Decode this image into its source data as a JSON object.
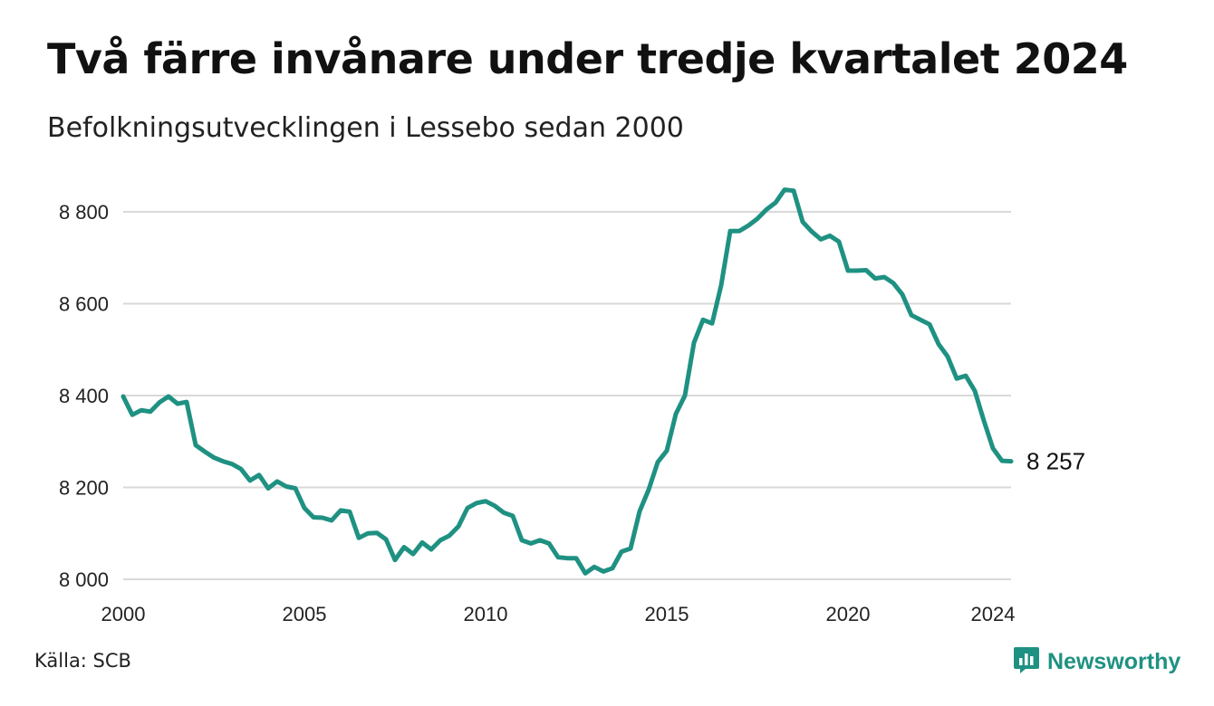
{
  "title": "Två färre invånare under tredje kvartalet 2024",
  "subtitle": "Befolkningsutvecklingen i Lessebo sedan 2000",
  "source": "Källa: SCB",
  "brand": {
    "name": "Newsworthy",
    "icon": "newsworthy-logo-icon",
    "color": "#1f9182"
  },
  "colors": {
    "line": "#1f9182",
    "grid": "#d9d9d9"
  },
  "chart_data": {
    "type": "line",
    "title": "Två färre invånare under tredje kvartalet 2024",
    "subtitle": "Befolkningsutvecklingen i Lessebo sedan 2000",
    "xlabel": "",
    "ylabel": "",
    "xlim": [
      2000,
      2024.5
    ],
    "ylim": [
      8000,
      8850
    ],
    "grid": true,
    "x_ticks": [
      2000,
      2005,
      2010,
      2015,
      2020,
      2024
    ],
    "x_tick_labels": [
      "2000",
      "2005",
      "2010",
      "2015",
      "2020",
      "2024"
    ],
    "y_ticks": [
      8000,
      8200,
      8400,
      8600,
      8800
    ],
    "y_tick_labels": [
      "8 000",
      "8 200",
      "8 400",
      "8 600",
      "8 800"
    ],
    "end_label": "8 257",
    "series": [
      {
        "x": [
          2000.0,
          2000.25,
          2000.5,
          2000.75,
          2001.0,
          2001.25,
          2001.5,
          2001.75,
          2002.0,
          2002.25,
          2002.5,
          2002.75,
          2003.0,
          2003.25,
          2003.5,
          2003.75,
          2004.0,
          2004.25,
          2004.5,
          2004.75,
          2005.0,
          2005.25,
          2005.5,
          2005.75,
          2006.0,
          2006.25,
          2006.5,
          2006.75,
          2007.0,
          2007.25,
          2007.5,
          2007.75,
          2008.0,
          2008.25,
          2008.5,
          2008.75,
          2009.0,
          2009.25,
          2009.5,
          2009.75,
          2010.0,
          2010.25,
          2010.5,
          2010.75,
          2011.0,
          2011.25,
          2011.5,
          2011.75,
          2012.0,
          2012.25,
          2012.5,
          2012.75,
          2013.0,
          2013.25,
          2013.5,
          2013.75,
          2014.0,
          2014.25,
          2014.5,
          2014.75,
          2015.0,
          2015.25,
          2015.5,
          2015.75,
          2016.0,
          2016.25,
          2016.5,
          2016.75,
          2017.0,
          2017.25,
          2017.5,
          2017.75,
          2018.0,
          2018.25,
          2018.5,
          2018.75,
          2019.0,
          2019.25,
          2019.5,
          2019.75,
          2020.0,
          2020.25,
          2020.5,
          2020.75,
          2021.0,
          2021.25,
          2021.5,
          2021.75,
          2022.0,
          2022.25,
          2022.5,
          2022.75,
          2023.0,
          2023.25,
          2023.5,
          2023.75,
          2024.0,
          2024.25,
          2024.5
        ],
        "values": [
          8398,
          8358,
          8368,
          8365,
          8385,
          8398,
          8382,
          8386,
          8292,
          8278,
          8265,
          8257,
          8251,
          8240,
          8215,
          8227,
          8198,
          8213,
          8202,
          8198,
          8155,
          8135,
          8134,
          8128,
          8150,
          8147,
          8090,
          8100,
          8101,
          8087,
          8042,
          8070,
          8055,
          8080,
          8065,
          8085,
          8095,
          8115,
          8155,
          8166,
          8170,
          8160,
          8145,
          8138,
          8085,
          8078,
          8085,
          8078,
          8048,
          8046,
          8046,
          8013,
          8027,
          8017,
          8024,
          8060,
          8067,
          8148,
          8195,
          8255,
          8280,
          8360,
          8400,
          8515,
          8565,
          8557,
          8640,
          8758,
          8758,
          8770,
          8785,
          8805,
          8820,
          8848,
          8846,
          8778,
          8757,
          8740,
          8748,
          8735,
          8672,
          8672,
          8673,
          8655,
          8658,
          8645,
          8620,
          8575,
          8565,
          8555,
          8512,
          8485,
          8437,
          8443,
          8410,
          8345,
          8285,
          8258,
          8257
        ]
      }
    ]
  }
}
